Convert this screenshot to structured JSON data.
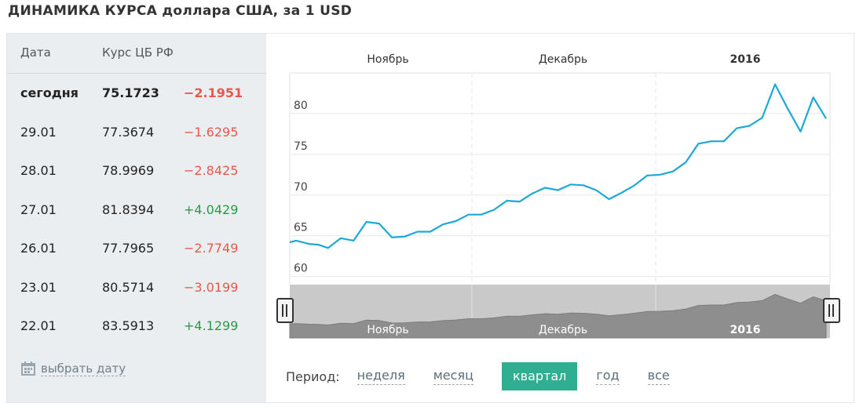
{
  "title": "ДИНАМИКА КУРСА доллара США, за 1 USD",
  "table": {
    "headers": [
      "Дата",
      "Курс ЦБ РФ"
    ],
    "rows": [
      {
        "date": "сегодня",
        "rate": "75.1723",
        "change": "−2.1951",
        "dir": "neg"
      },
      {
        "date": "29.01",
        "rate": "77.3674",
        "change": "−1.6295",
        "dir": "neg"
      },
      {
        "date": "28.01",
        "rate": "78.9969",
        "change": "−2.8425",
        "dir": "neg"
      },
      {
        "date": "27.01",
        "rate": "81.8394",
        "change": "+4.0429",
        "dir": "pos"
      },
      {
        "date": "26.01",
        "rate": "77.7965",
        "change": "−2.7749",
        "dir": "neg"
      },
      {
        "date": "23.01",
        "rate": "80.5714",
        "change": "−3.0199",
        "dir": "neg"
      },
      {
        "date": "22.01",
        "rate": "83.5913",
        "change": "+4.1299",
        "dir": "pos"
      }
    ],
    "pick_date_label": "выбрать дату",
    "pick_date_icon": "calendar-icon"
  },
  "period": {
    "label": "Период:",
    "options": [
      "неделя",
      "месяц",
      "квартал",
      "год",
      "все"
    ],
    "selected": "квартал"
  },
  "colors": {
    "line": "#1ea8d8",
    "active_period": "#2fae92",
    "negative": "#e8584a",
    "positive": "#2a9a46"
  },
  "chart_data": {
    "type": "line",
    "x_labels": [
      "Ноябрь",
      "Декабрь",
      "2016"
    ],
    "y_ticks": [
      60,
      65,
      70,
      75,
      80
    ],
    "ylim": [
      59,
      85
    ],
    "grid": true,
    "x": [
      "2015-10-30",
      "2015-10-31",
      "2015-11-03",
      "2015-11-05",
      "2015-11-07",
      "2015-11-10",
      "2015-11-13",
      "2015-11-17",
      "2015-11-19",
      "2015-11-21",
      "2015-11-24",
      "2015-11-26",
      "2015-11-28",
      "2015-12-01",
      "2015-12-03",
      "2015-12-05",
      "2015-12-08",
      "2015-12-10",
      "2015-12-12",
      "2015-12-15",
      "2015-12-17",
      "2015-12-19",
      "2015-12-22",
      "2015-12-23",
      "2015-12-25",
      "2015-12-29",
      "2015-12-30",
      "2016-01-05",
      "2016-01-07",
      "2016-01-10",
      "2016-01-12",
      "2016-01-14",
      "2016-01-15",
      "2016-01-19",
      "2016-01-20",
      "2016-01-21",
      "2016-01-22",
      "2016-01-23",
      "2016-01-25",
      "2016-01-26",
      "2016-01-27",
      "2016-01-28",
      "2016-01-29",
      "2016-01-30"
    ],
    "y": [
      64.2,
      64.4,
      64.0,
      63.9,
      63.5,
      64.7,
      64.4,
      66.7,
      66.5,
      64.8,
      64.9,
      65.5,
      65.5,
      66.4,
      66.8,
      67.6,
      67.6,
      68.2,
      69.3,
      69.2,
      70.2,
      70.9,
      70.6,
      71.3,
      71.2,
      70.6,
      69.5,
      70.3,
      71.2,
      72.4,
      72.5,
      72.9,
      74.0,
      76.3,
      76.6,
      76.6,
      78.2,
      78.5,
      79.5,
      83.6,
      80.6,
      77.8,
      82.0,
      79.4
    ],
    "x_override": [
      0,
      2,
      6,
      9,
      12,
      16,
      20,
      24,
      28,
      32,
      36,
      40,
      44,
      48,
      52,
      56,
      60,
      64,
      68,
      72,
      76,
      80,
      84,
      88,
      92,
      96,
      100,
      104,
      108,
      112,
      116,
      120,
      124,
      128,
      132,
      136,
      140,
      144,
      148,
      152,
      156,
      160,
      164,
      168
    ]
  }
}
